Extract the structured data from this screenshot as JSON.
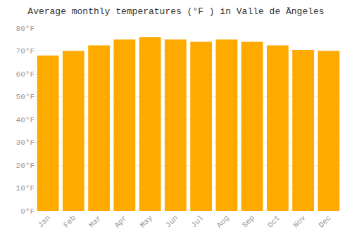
{
  "chart_data": {
    "type": "bar",
    "title": "Average monthly temperatures (°F ) in Valle de Ängeles",
    "categories": [
      "Jan",
      "Feb",
      "Mar",
      "Apr",
      "May",
      "Jun",
      "Jul",
      "Aug",
      "Sep",
      "Oct",
      "Nov",
      "Dec"
    ],
    "values": [
      68,
      70,
      72.5,
      75,
      76,
      75,
      74,
      75,
      74,
      72.5,
      70.5,
      70
    ],
    "color": "#FFAA00",
    "ylim": [
      0,
      80
    ],
    "yticks": [
      {
        "value": 0,
        "label": "0°F"
      },
      {
        "value": 10,
        "label": "10°F"
      },
      {
        "value": 20,
        "label": "20°F"
      },
      {
        "value": 30,
        "label": "30°F"
      },
      {
        "value": 40,
        "label": "40°F"
      },
      {
        "value": 50,
        "label": "50°F"
      },
      {
        "value": 60,
        "label": "60°F"
      },
      {
        "value": 70,
        "label": "70°F"
      },
      {
        "value": 80,
        "label": "80°F"
      }
    ],
    "grid": true
  }
}
